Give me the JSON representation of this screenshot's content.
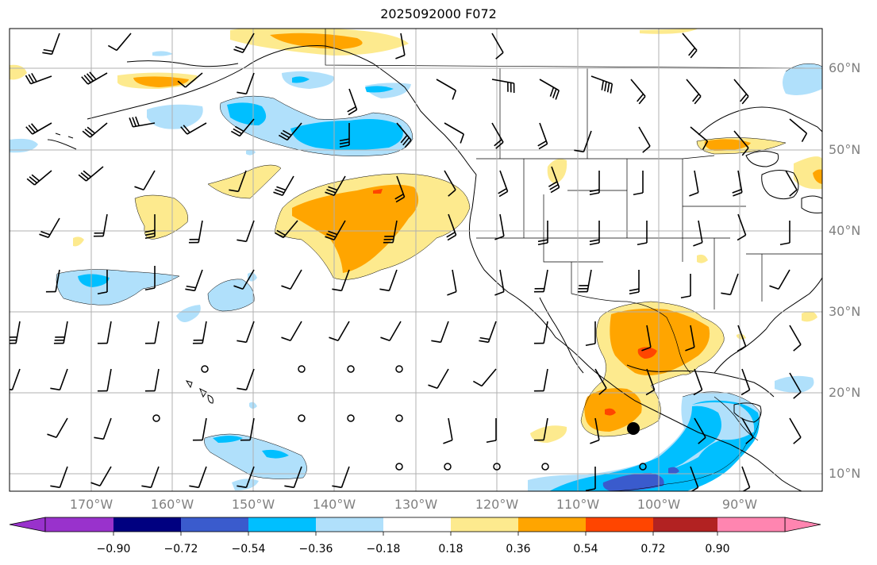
{
  "title": "2025092000 F072",
  "lat_labels": [
    "60°N",
    "50°N",
    "40°N",
    "30°N",
    "20°N",
    "10°N"
  ],
  "lon_labels": [
    "170°W",
    "160°W",
    "150°W",
    "140°W",
    "130°W",
    "120°W",
    "110°W",
    "100°W",
    "90°W"
  ],
  "colorbar": {
    "tick_labels": [
      "−0.90",
      "−0.72",
      "−0.54",
      "−0.36",
      "−0.18",
      "0.18",
      "0.36",
      "0.54",
      "0.72",
      "0.90"
    ],
    "colors": {
      "under": "#9932cc",
      "b1": "#000080",
      "b2": "#3a5bcd",
      "b3": "#00bfff",
      "b4": "#b0e0fb",
      "b5": "#ffffff",
      "b6": "#fdea8e",
      "b7": "#ffa500",
      "b8": "#ff4500",
      "b9": "#b22222",
      "over": "#ff85b0"
    }
  },
  "fill_colors": {
    "yellow": "#fdea8e",
    "orange": "#ffa500",
    "red": "#ff4500",
    "lightblue": "#b0e0fb",
    "blue": "#00bfff",
    "midblue": "#3a5bcd"
  }
}
